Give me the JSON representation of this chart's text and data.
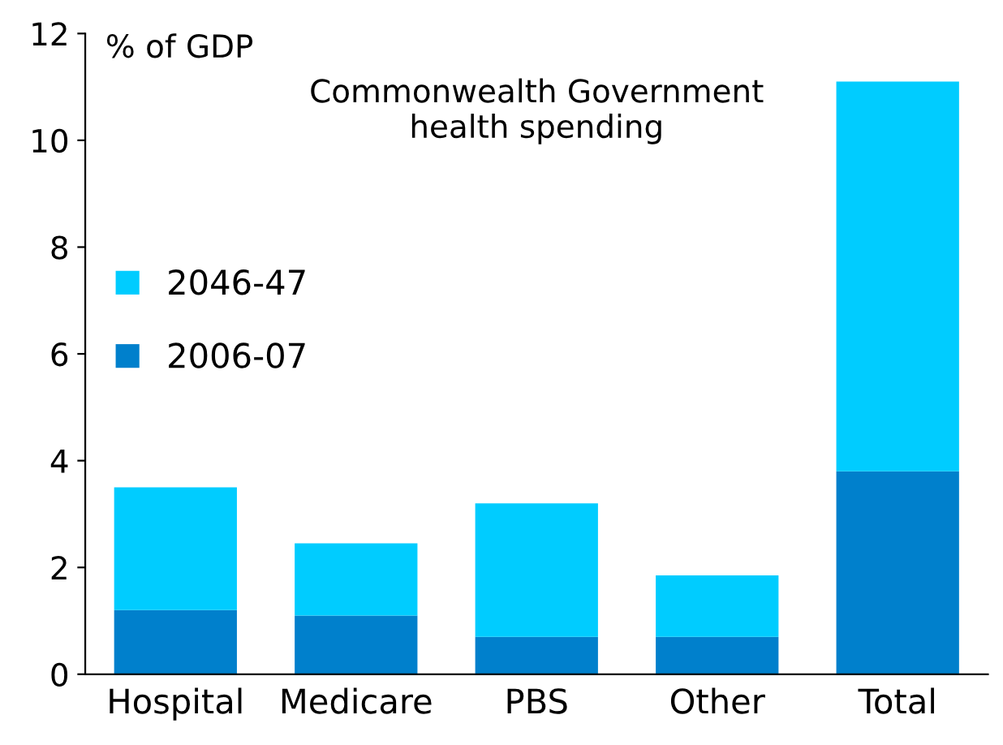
{
  "chart_data": {
    "type": "bar",
    "title": "Commonwealth Government\nhealth spending",
    "ylabel": "% of GDP",
    "categories": [
      "Hospital",
      "Medicare",
      "PBS",
      "Other",
      "Total"
    ],
    "stacked": true,
    "series": [
      {
        "name": "2006-07",
        "color": "#0080cc",
        "values": [
          1.2,
          1.1,
          0.7,
          0.7,
          3.8
        ]
      },
      {
        "name": "2046-47",
        "color": "#00ccff",
        "values": [
          2.3,
          1.35,
          2.5,
          1.15,
          7.3
        ]
      }
    ],
    "ylim": [
      0,
      12
    ],
    "yticks": [
      0,
      2,
      4,
      6,
      8,
      10,
      12
    ],
    "grid": false,
    "legend": "left"
  }
}
